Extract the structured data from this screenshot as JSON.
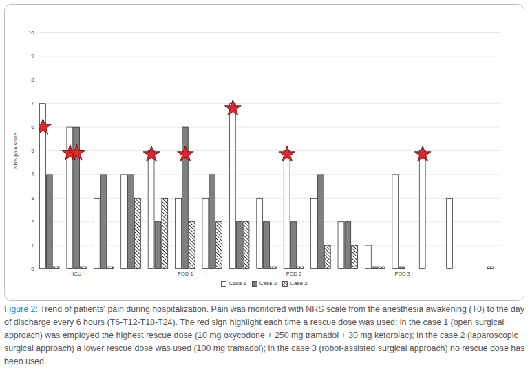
{
  "chart_data": {
    "type": "bar",
    "y_label": "NRS pain score",
    "categories": [
      null,
      "ICU",
      null,
      null,
      null,
      "POD 1",
      null,
      null,
      null,
      "POD 2",
      null,
      null,
      null,
      "POD 3",
      null,
      null,
      null
    ],
    "series": [
      {
        "name": "Case 1",
        "color": "#ffffff",
        "values": [
          7,
          6,
          3,
          4,
          5,
          3,
          3,
          7,
          3,
          5,
          3,
          2,
          1,
          4,
          5,
          3,
          null
        ]
      },
      {
        "name": "Case 2",
        "color": "#808080",
        "values": [
          4,
          6,
          4,
          4,
          2,
          6,
          4,
          2,
          2,
          2,
          4,
          2,
          0.1,
          0.1,
          null,
          null,
          null
        ]
      },
      {
        "name": "Case 3",
        "color": "#000000",
        "values": [
          0.1,
          0.1,
          0.1,
          3,
          3,
          2,
          2,
          2,
          0.1,
          0.1,
          1,
          1,
          0.1,
          null,
          null,
          null,
          0.1
        ]
      }
    ],
    "rescue": {
      "color": "#e3262b",
      "marker": "star",
      "series": [
        {
          "name": "Case 1",
          "values": [
            6,
            4.9,
            null,
            null,
            4.85,
            null,
            null,
            6.8,
            null,
            4.85,
            null,
            null,
            null,
            null,
            4.85,
            null,
            null
          ]
        },
        {
          "name": "Case 2",
          "values": [
            null,
            4.9,
            null,
            null,
            null,
            4.85,
            null,
            null,
            null,
            null,
            null,
            null,
            null,
            null,
            null,
            null,
            null
          ]
        }
      ]
    },
    "ylim": [
      0,
      10
    ],
    "yticks": [
      0,
      1,
      2,
      3,
      4,
      5,
      6,
      7,
      8,
      9,
      10
    ],
    "grid": true,
    "legend": "bottom",
    "caption_label": "Figure 2:",
    "caption": "Trend of patients' pain during hospitalization. Pain was monitored with NRS scale from the anesthesia awakening (T0) to the day of discharge every 6 hours (T6-T12-T18-T24). The red sign highlight each time a rescue dose was used: in the case 1 (open surgical approach) was employed the highest rescue dose (10 mg oxycodone + 250 mg tramadol + 30 mg ketorolac); in the case 2 (laparoscopic surgical approach) a lower rescue dose was used (100 mg tramadol); in the case 3 (robot-assisted surgical approach) no rescue dose has been used."
  }
}
